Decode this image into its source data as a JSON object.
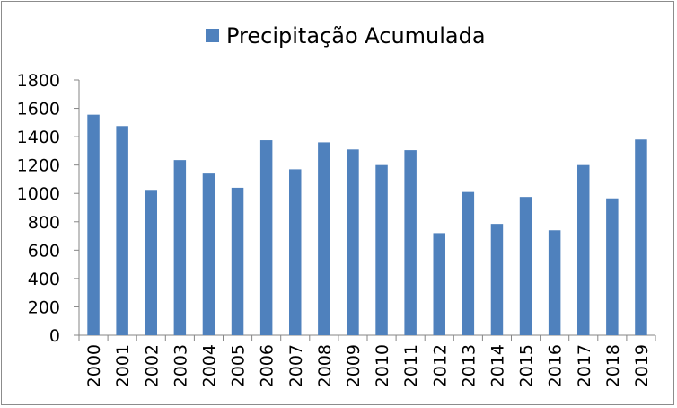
{
  "chart_data": {
    "type": "bar",
    "legend": {
      "label": "Precipitação Acumulada",
      "placement": "top",
      "color": "#4f81bd"
    },
    "categories": [
      "2000",
      "2001",
      "2002",
      "2003",
      "2004",
      "2005",
      "2006",
      "2007",
      "2008",
      "2009",
      "2010",
      "2011",
      "2012",
      "2013",
      "2014",
      "2015",
      "2016",
      "2017",
      "2018",
      "2019"
    ],
    "series": [
      {
        "name": "Precipitação Acumulada",
        "color": "#4f81bd",
        "values": [
          1555,
          1475,
          1025,
          1235,
          1140,
          1040,
          1375,
          1170,
          1360,
          1310,
          1200,
          1305,
          720,
          1010,
          785,
          975,
          740,
          1200,
          965,
          1380
        ]
      }
    ],
    "ylim": [
      0,
      1800
    ],
    "yticks": [
      0,
      200,
      400,
      600,
      800,
      1000,
      1200,
      1400,
      1600,
      1800
    ],
    "grid": false
  }
}
